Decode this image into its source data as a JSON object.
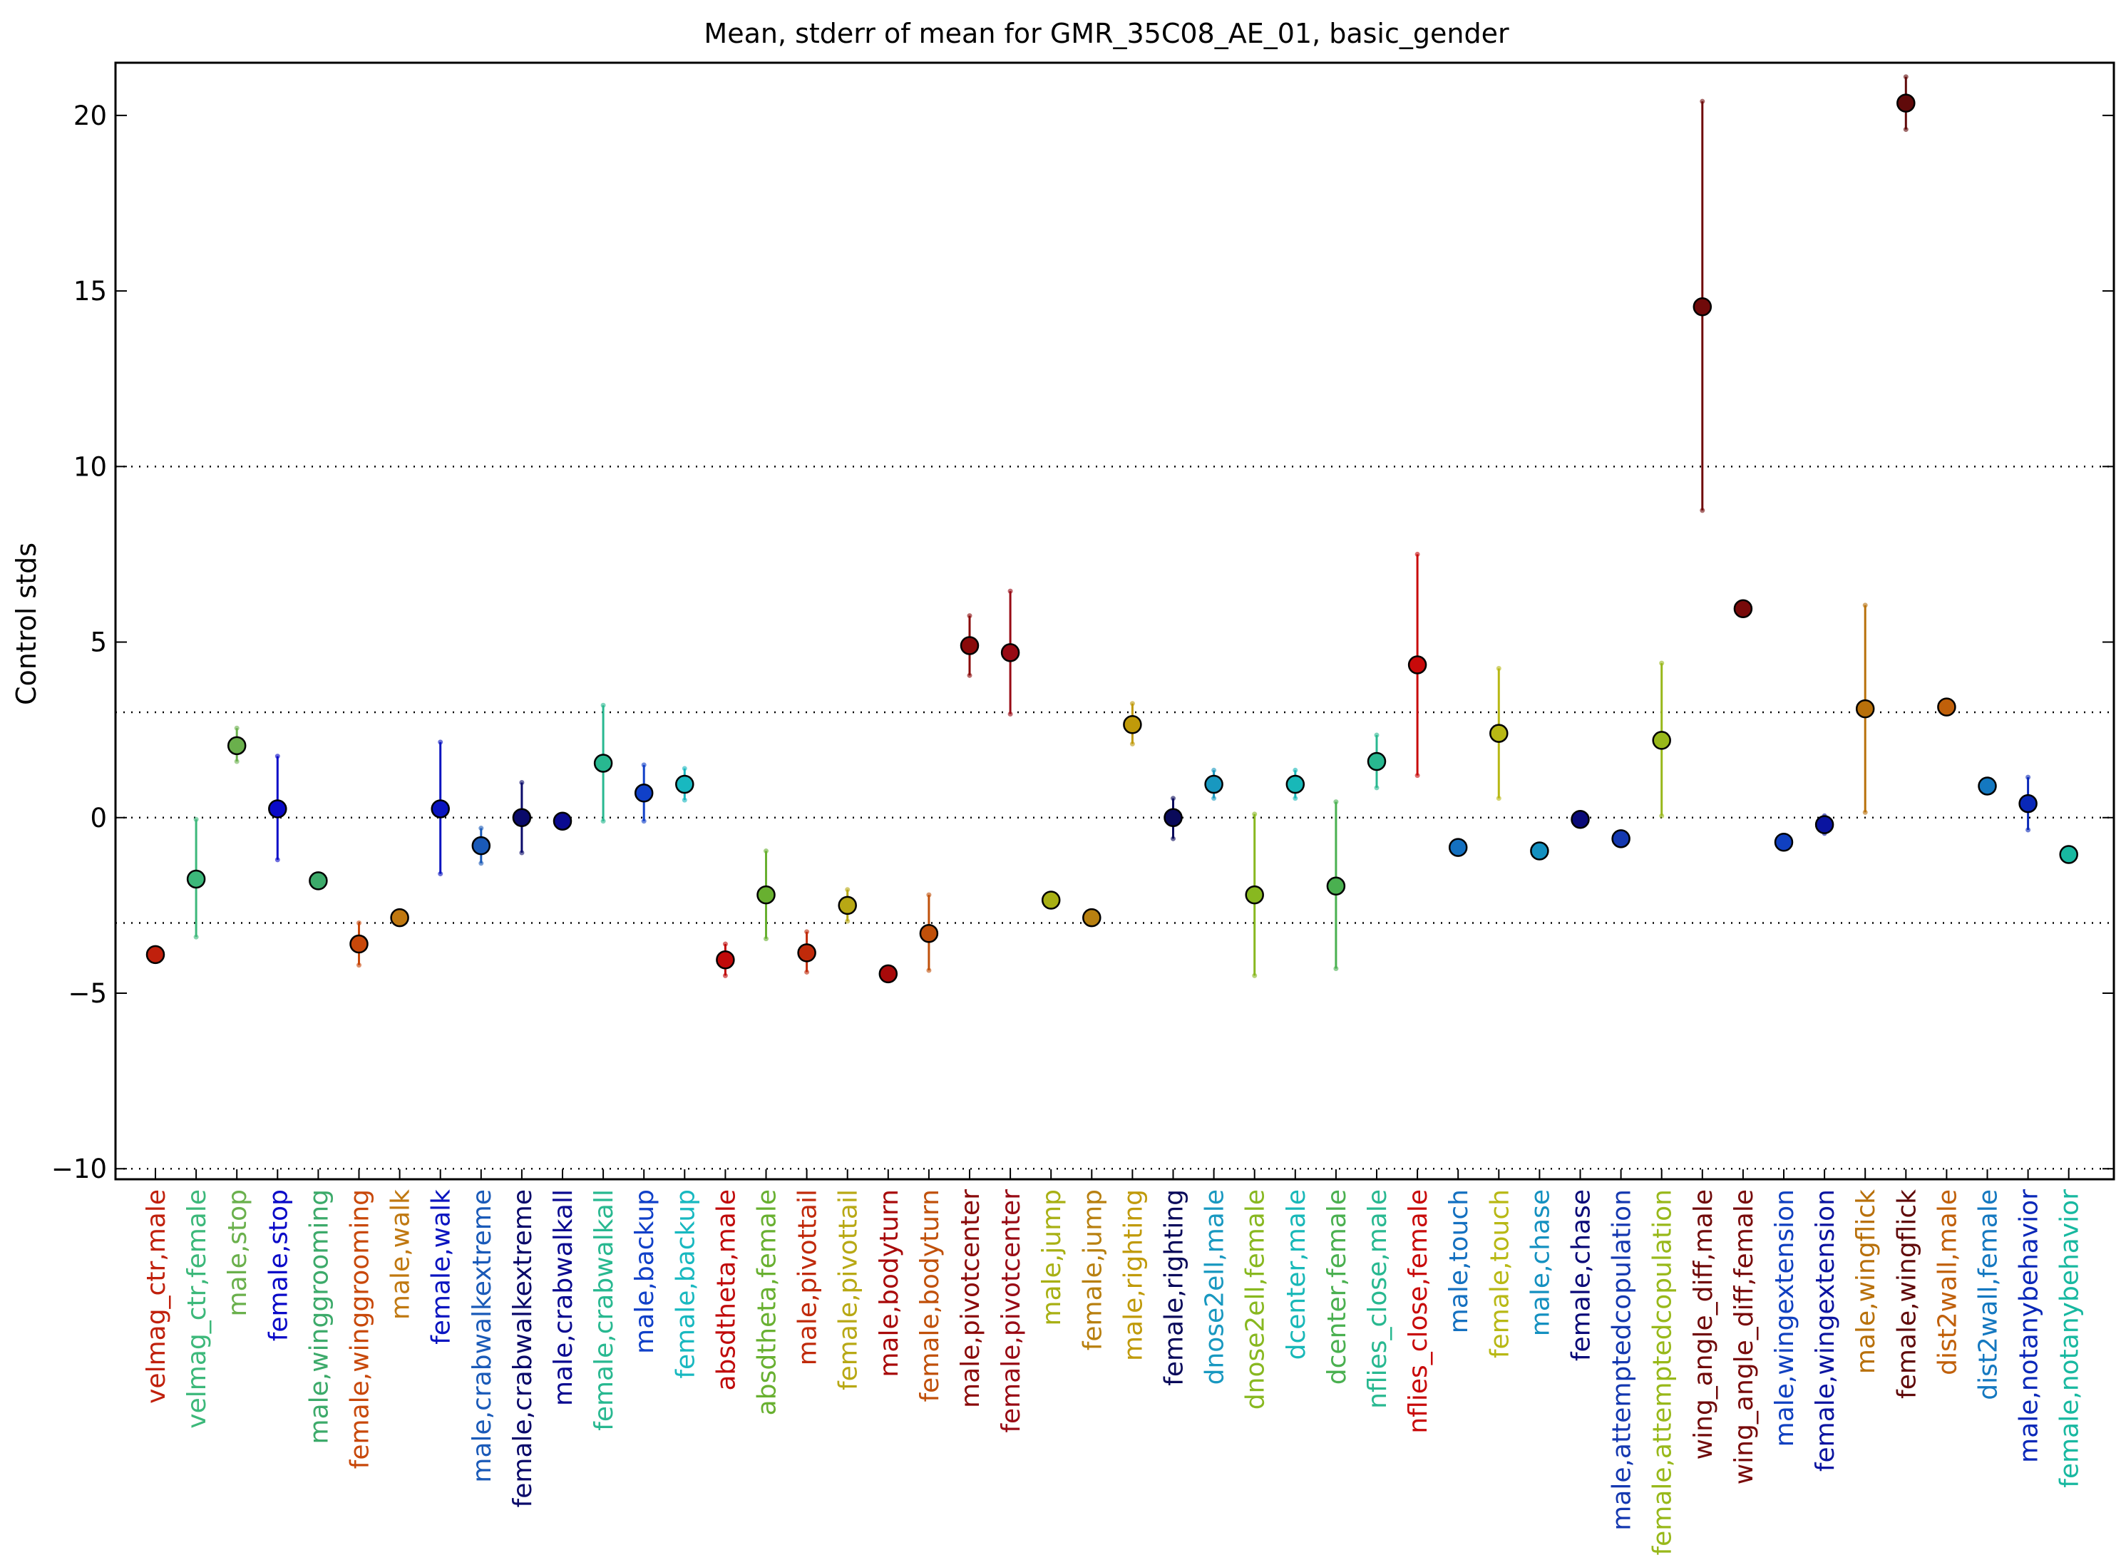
{
  "chart_data": {
    "type": "scatter",
    "title": "Mean, stderr of mean for GMR_35C08_AE_01, basic_gender",
    "ylabel": "Control stds",
    "xlabel": "",
    "ylim": [
      -10.3,
      21.5
    ],
    "yticks": [
      -10,
      -5,
      0,
      5,
      10,
      15,
      20
    ],
    "ytick_labels": [
      "−10",
      "−5",
      "0",
      "5",
      "10",
      "15",
      "20"
    ],
    "reference_lines": [
      -10,
      -3,
      0,
      3,
      10
    ],
    "grid": false,
    "legend": "none",
    "points": [
      {
        "label": "velmag_ctr,male",
        "mean": -3.9,
        "lo": -3.9,
        "hi": -3.9,
        "color": "#c0200c"
      },
      {
        "label": "velmag_ctr,female",
        "mean": -1.75,
        "lo": -3.4,
        "hi": -0.05,
        "color": "#3cb87a"
      },
      {
        "label": "male,stop",
        "mean": 2.05,
        "lo": 1.6,
        "hi": 2.55,
        "color": "#6ab04c"
      },
      {
        "label": "female,stop",
        "mean": 0.25,
        "lo": -1.2,
        "hi": 1.75,
        "color": "#0a0ac8"
      },
      {
        "label": "male,winggrooming",
        "mean": -1.8,
        "lo": -1.8,
        "hi": -1.8,
        "color": "#3caa6a"
      },
      {
        "label": "female,winggrooming",
        "mean": -3.6,
        "lo": -4.2,
        "hi": -3.0,
        "color": "#c8480a"
      },
      {
        "label": "male,walk",
        "mean": -2.85,
        "lo": -2.85,
        "hi": -2.85,
        "color": "#c07810"
      },
      {
        "label": "female,walk",
        "mean": 0.25,
        "lo": -1.6,
        "hi": 2.15,
        "color": "#0a14c0"
      },
      {
        "label": "male,crabwalkextreme",
        "mean": -0.8,
        "lo": -1.3,
        "hi": -0.3,
        "color": "#1a5ab8"
      },
      {
        "label": "female,crabwalkextreme",
        "mean": 0.0,
        "lo": -1.0,
        "hi": 1.0,
        "color": "#0a0a6a"
      },
      {
        "label": "male,crabwalkall",
        "mean": -0.1,
        "lo": -0.1,
        "hi": -0.1,
        "color": "#0a0a90"
      },
      {
        "label": "female,crabwalkall",
        "mean": 1.55,
        "lo": -0.1,
        "hi": 3.2,
        "color": "#28b890"
      },
      {
        "label": "male,backup",
        "mean": 0.7,
        "lo": -0.1,
        "hi": 1.5,
        "color": "#1040c8"
      },
      {
        "label": "female,backup",
        "mean": 0.95,
        "lo": 0.5,
        "hi": 1.4,
        "color": "#18b8c0"
      },
      {
        "label": "absdtheta,male",
        "mean": -4.05,
        "lo": -4.5,
        "hi": -3.6,
        "color": "#c00a0a"
      },
      {
        "label": "absdtheta,female",
        "mean": -2.2,
        "lo": -3.45,
        "hi": -0.95,
        "color": "#68b030"
      },
      {
        "label": "male,pivottail",
        "mean": -3.85,
        "lo": -4.4,
        "hi": -3.25,
        "color": "#c02a0a"
      },
      {
        "label": "female,pivottail",
        "mean": -2.5,
        "lo": -2.95,
        "hi": -2.05,
        "color": "#b8a814"
      },
      {
        "label": "male,bodyturn",
        "mean": -4.45,
        "lo": -4.45,
        "hi": -4.45,
        "color": "#a80a0a"
      },
      {
        "label": "female,bodyturn",
        "mean": -3.3,
        "lo": -4.35,
        "hi": -2.2,
        "color": "#c0500a"
      },
      {
        "label": "male,pivotcenter",
        "mean": 4.9,
        "lo": 4.05,
        "hi": 5.75,
        "color": "#8a0a0a"
      },
      {
        "label": "female,pivotcenter",
        "mean": 4.7,
        "lo": 2.95,
        "hi": 6.45,
        "color": "#980a14"
      },
      {
        "label": "male,jump",
        "mean": -2.35,
        "lo": -2.35,
        "hi": -2.35,
        "color": "#a8b014"
      },
      {
        "label": "female,jump",
        "mean": -2.85,
        "lo": -2.85,
        "hi": -2.85,
        "color": "#b88010"
      },
      {
        "label": "male,righting",
        "mean": 2.65,
        "lo": 2.1,
        "hi": 3.25,
        "color": "#c09a0a"
      },
      {
        "label": "female,righting",
        "mean": 0.0,
        "lo": -0.6,
        "hi": 0.55,
        "color": "#0a0a5a"
      },
      {
        "label": "dnose2ell,male",
        "mean": 0.95,
        "lo": 0.55,
        "hi": 1.35,
        "color": "#1898c0"
      },
      {
        "label": "dnose2ell,female",
        "mean": -2.2,
        "lo": -4.5,
        "hi": 0.1,
        "color": "#88b820"
      },
      {
        "label": "dcenter,male",
        "mean": 0.95,
        "lo": 0.55,
        "hi": 1.35,
        "color": "#18b8b8"
      },
      {
        "label": "dcenter,female",
        "mean": -1.95,
        "lo": -4.3,
        "hi": 0.45,
        "color": "#4ab050"
      },
      {
        "label": "nflies_close,male",
        "mean": 1.6,
        "lo": 0.85,
        "hi": 2.35,
        "color": "#28b890"
      },
      {
        "label": "nflies_close,female",
        "mean": 4.35,
        "lo": 1.2,
        "hi": 7.5,
        "color": "#c80a0a"
      },
      {
        "label": "male,touch",
        "mean": -0.85,
        "lo": -0.85,
        "hi": -0.85,
        "color": "#1470c0"
      },
      {
        "label": "female,touch",
        "mean": 2.4,
        "lo": 0.55,
        "hi": 4.25,
        "color": "#b8b814"
      },
      {
        "label": "male,chase",
        "mean": -0.95,
        "lo": -0.95,
        "hi": -0.95,
        "color": "#1490c0"
      },
      {
        "label": "female,chase",
        "mean": -0.05,
        "lo": -0.05,
        "hi": -0.05,
        "color": "#0a0a78"
      },
      {
        "label": "male,attemptedcopulation",
        "mean": -0.6,
        "lo": -0.6,
        "hi": -0.6,
        "color": "#1438b0"
      },
      {
        "label": "female,attemptedcopulation",
        "mean": 2.2,
        "lo": 0.05,
        "hi": 4.4,
        "color": "#98b81a"
      },
      {
        "label": "wing_angle_diff,male",
        "mean": 14.55,
        "lo": 8.75,
        "hi": 20.4,
        "color": "#700a0a"
      },
      {
        "label": "wing_angle_diff,female",
        "mean": 5.95,
        "lo": 5.95,
        "hi": 5.95,
        "color": "#780a0a"
      },
      {
        "label": "male,wingextension",
        "mean": -0.7,
        "lo": -0.7,
        "hi": -0.7,
        "color": "#1040c0"
      },
      {
        "label": "female,wingextension",
        "mean": -0.2,
        "lo": -0.45,
        "hi": 0.05,
        "color": "#0a14a0"
      },
      {
        "label": "male,wingflick",
        "mean": 3.1,
        "lo": 0.15,
        "hi": 6.05,
        "color": "#b8700a"
      },
      {
        "label": "female,wingflick",
        "mean": 20.35,
        "lo": 19.6,
        "hi": 21.1,
        "color": "#600a0a"
      },
      {
        "label": "dist2wall,male",
        "mean": 3.15,
        "lo": 3.15,
        "hi": 3.15,
        "color": "#c0600a"
      },
      {
        "label": "dist2wall,female",
        "mean": 0.9,
        "lo": 0.9,
        "hi": 0.9,
        "color": "#1478c0"
      },
      {
        "label": "male,notanybehavior",
        "mean": 0.4,
        "lo": -0.35,
        "hi": 1.15,
        "color": "#0a28b8"
      },
      {
        "label": "female,notanybehavior",
        "mean": -1.05,
        "lo": -1.05,
        "hi": -1.05,
        "color": "#18b8a0"
      }
    ]
  }
}
